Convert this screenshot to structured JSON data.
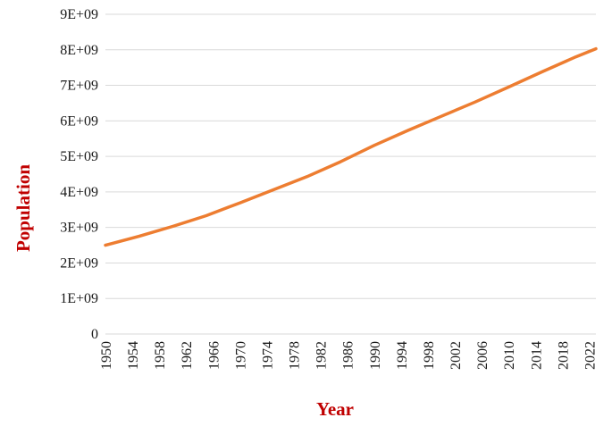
{
  "chart_data": {
    "type": "line",
    "xlabel": "Year",
    "ylabel": "Population",
    "ylim": [
      0,
      9000000000
    ],
    "xlim": [
      1950,
      2023
    ],
    "grid": true,
    "legend": "none",
    "y_ticks": [
      "0",
      "1E+09",
      "2E+09",
      "3E+09",
      "4E+09",
      "5E+09",
      "6E+09",
      "7E+09",
      "8E+09",
      "9E+09"
    ],
    "x_ticks": [
      "1950",
      "1954",
      "1958",
      "1962",
      "1966",
      "1970",
      "1974",
      "1978",
      "1982",
      "1986",
      "1990",
      "1994",
      "1998",
      "2002",
      "2006",
      "2010",
      "2014",
      "2018",
      "2022"
    ],
    "colors": {
      "line": "#ed7d31",
      "axis_title": "#c00000",
      "grid": "#d9d9d9"
    },
    "series": [
      {
        "x": [
          1950,
          1955,
          1960,
          1965,
          1970,
          1975,
          1980,
          1985,
          1990,
          1995,
          2000,
          2005,
          2010,
          2015,
          2020,
          2023
        ],
        "values": [
          2500000000,
          2750000000,
          3030000000,
          3330000000,
          3690000000,
          4060000000,
          4430000000,
          4850000000,
          5310000000,
          5730000000,
          6130000000,
          6530000000,
          6950000000,
          7380000000,
          7800000000,
          8030000000
        ]
      }
    ]
  }
}
